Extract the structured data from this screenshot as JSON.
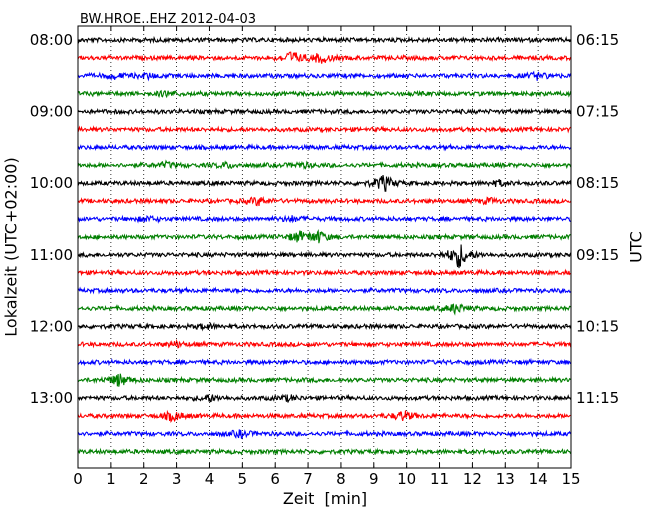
{
  "chart_data": {
    "type": "line",
    "title": "BW.HROE..EHZ 2012-04-03",
    "xlabel": "Zeit  [min]",
    "ylabel_left": "Lokalzeit (UTC+02:00)",
    "ylabel_right": "UTC",
    "xlim": [
      0,
      15
    ],
    "x_ticks": [
      "0",
      "1",
      "2",
      "3",
      "4",
      "5",
      "6",
      "7",
      "8",
      "9",
      "10",
      "11",
      "12",
      "13",
      "14",
      "15"
    ],
    "grid": "vertical dotted",
    "left_tick_labels": [
      "08:00",
      "09:00",
      "10:00",
      "11:00",
      "12:00",
      "13:00"
    ],
    "right_tick_labels": [
      "06:15",
      "07:15",
      "08:15",
      "09:15",
      "10:15",
      "11:15"
    ],
    "trace_minutes": 15,
    "colors": [
      "#000000",
      "#ff0000",
      "#0000ff",
      "#007f00"
    ],
    "traces": [
      {
        "bursts": []
      },
      {
        "bursts": [
          [
            6.5,
            0.8
          ],
          [
            7.4,
            0.6
          ]
        ]
      },
      {
        "bursts": [
          [
            1.1,
            0.3
          ],
          [
            2.1,
            0.3
          ],
          [
            14.0,
            0.4
          ]
        ]
      },
      {
        "bursts": [
          [
            2.7,
            0.3
          ]
        ]
      },
      {
        "bursts": []
      },
      {
        "bursts": []
      },
      {
        "bursts": []
      },
      {
        "bursts": [
          [
            2.7,
            0.3
          ],
          [
            4.5,
            0.3
          ],
          [
            6.8,
            0.3
          ]
        ]
      },
      {
        "bursts": [
          [
            9.3,
            1.0
          ],
          [
            12.8,
            0.3
          ]
        ]
      },
      {
        "bursts": [
          [
            5.5,
            0.5
          ],
          [
            12.5,
            0.3
          ]
        ]
      },
      {
        "bursts": [
          [
            2.1,
            0.3
          ],
          [
            6.5,
            0.3
          ]
        ]
      },
      {
        "bursts": [
          [
            6.7,
            0.6
          ],
          [
            7.3,
            0.7
          ]
        ]
      },
      {
        "bursts": [
          [
            11.6,
            1.6
          ]
        ]
      },
      {
        "bursts": []
      },
      {
        "bursts": []
      },
      {
        "bursts": [
          [
            11.5,
            0.6
          ]
        ]
      },
      {
        "bursts": [
          [
            3.9,
            0.3
          ]
        ]
      },
      {
        "bursts": [
          [
            3.0,
            0.3
          ]
        ]
      },
      {
        "bursts": []
      },
      {
        "bursts": [
          [
            1.25,
            0.8
          ]
        ]
      },
      {
        "bursts": [
          [
            4.0,
            0.4
          ],
          [
            6.4,
            0.3
          ]
        ]
      },
      {
        "bursts": [
          [
            2.9,
            0.6
          ],
          [
            9.9,
            0.6
          ]
        ]
      },
      {
        "bursts": [
          [
            4.95,
            0.4
          ]
        ]
      },
      {
        "bursts": []
      }
    ]
  }
}
